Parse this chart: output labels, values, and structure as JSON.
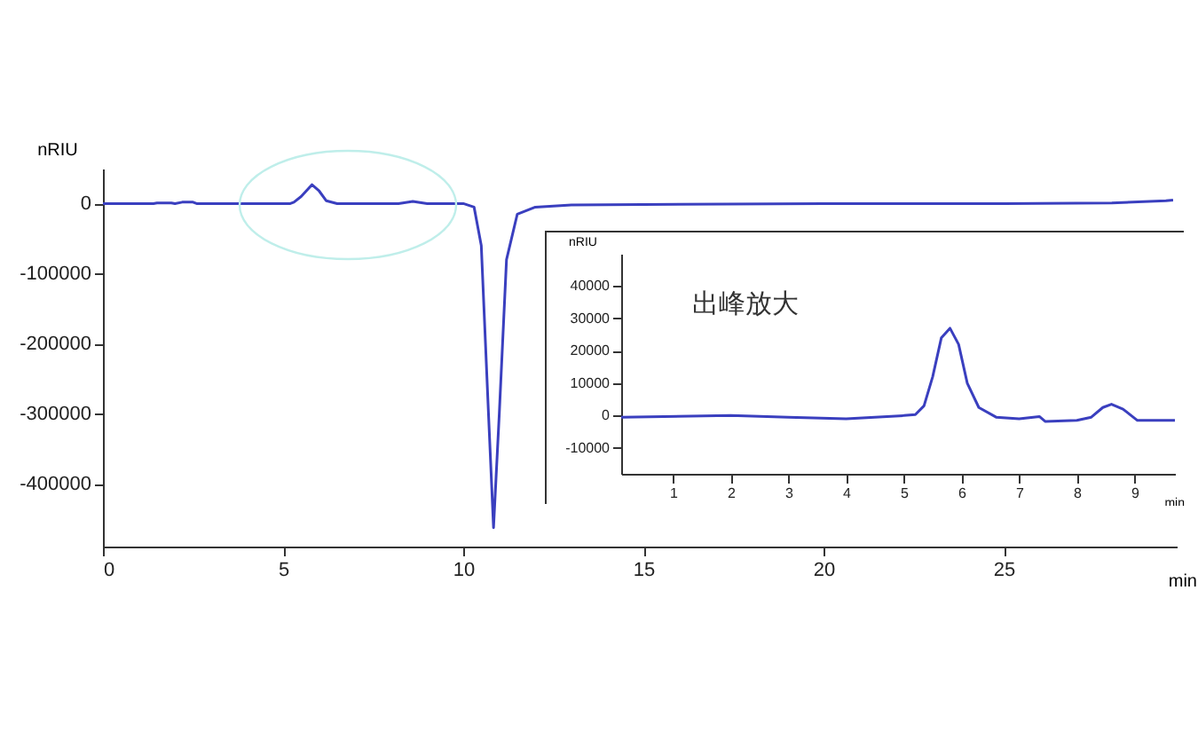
{
  "chart_data": [
    {
      "type": "line",
      "xlabel": "min",
      "ylabel": "nRIU",
      "xlim": [
        0,
        29.8
      ],
      "ylim": [
        -490000,
        50000
      ],
      "xticks": [
        0,
        5,
        10,
        15,
        20,
        25
      ],
      "yticks": [
        -400000,
        -300000,
        -200000,
        -100000,
        0
      ],
      "grid": false,
      "marker": "none",
      "line_style": "solid",
      "series": [
        {
          "color": "#3a3fbf",
          "x": [
            0,
            1.4,
            1.5,
            1.9,
            2.0,
            2.2,
            2.5,
            2.6,
            5.2,
            5.3,
            5.5,
            5.8,
            6.0,
            6.2,
            6.5,
            8.2,
            8.6,
            9.0,
            10.0,
            10.3,
            10.5,
            10.7,
            10.84,
            11.0,
            11.2,
            11.5,
            12,
            13,
            20,
            25,
            28,
            29.5,
            29.7
          ],
          "values": [
            0,
            0,
            1000,
            1000,
            0,
            2000,
            2000,
            0,
            0,
            2000,
            10000,
            27000,
            18000,
            4000,
            0,
            0,
            3000,
            0,
            0,
            -5000,
            -60000,
            -300000,
            -463000,
            -300000,
            -80000,
            -15000,
            -5000,
            -2000,
            0,
            0,
            1000,
            4000,
            5000
          ]
        }
      ]
    },
    {
      "type": "line",
      "xlabel": "min",
      "ylabel": "nRIU",
      "xlim": [
        0.1,
        9.7
      ],
      "ylim": [
        -18000,
        50000
      ],
      "xticks": [
        1,
        2,
        3,
        4,
        5,
        6,
        7,
        8,
        9
      ],
      "yticks": [
        -10000,
        0,
        10000,
        20000,
        30000,
        40000
      ],
      "grid": false,
      "marker": "none",
      "line_style": "solid",
      "annotations": [
        "出峰放大"
      ],
      "series": [
        {
          "color": "#3a3fbf",
          "x": [
            0.1,
            2,
            3,
            4,
            5,
            5.2,
            5.35,
            5.5,
            5.65,
            5.8,
            5.95,
            6.1,
            6.3,
            6.6,
            7,
            7.35,
            7.45,
            8,
            8.25,
            8.45,
            8.6,
            8.8,
            9.05,
            9.7
          ],
          "values": [
            -500,
            0,
            -500,
            -1000,
            0,
            300,
            3000,
            12000,
            24000,
            27000,
            22000,
            10000,
            2500,
            -500,
            -1000,
            -300,
            -1800,
            -1500,
            -500,
            2500,
            3500,
            2000,
            -1500,
            -1500
          ]
        }
      ]
    }
  ]
}
